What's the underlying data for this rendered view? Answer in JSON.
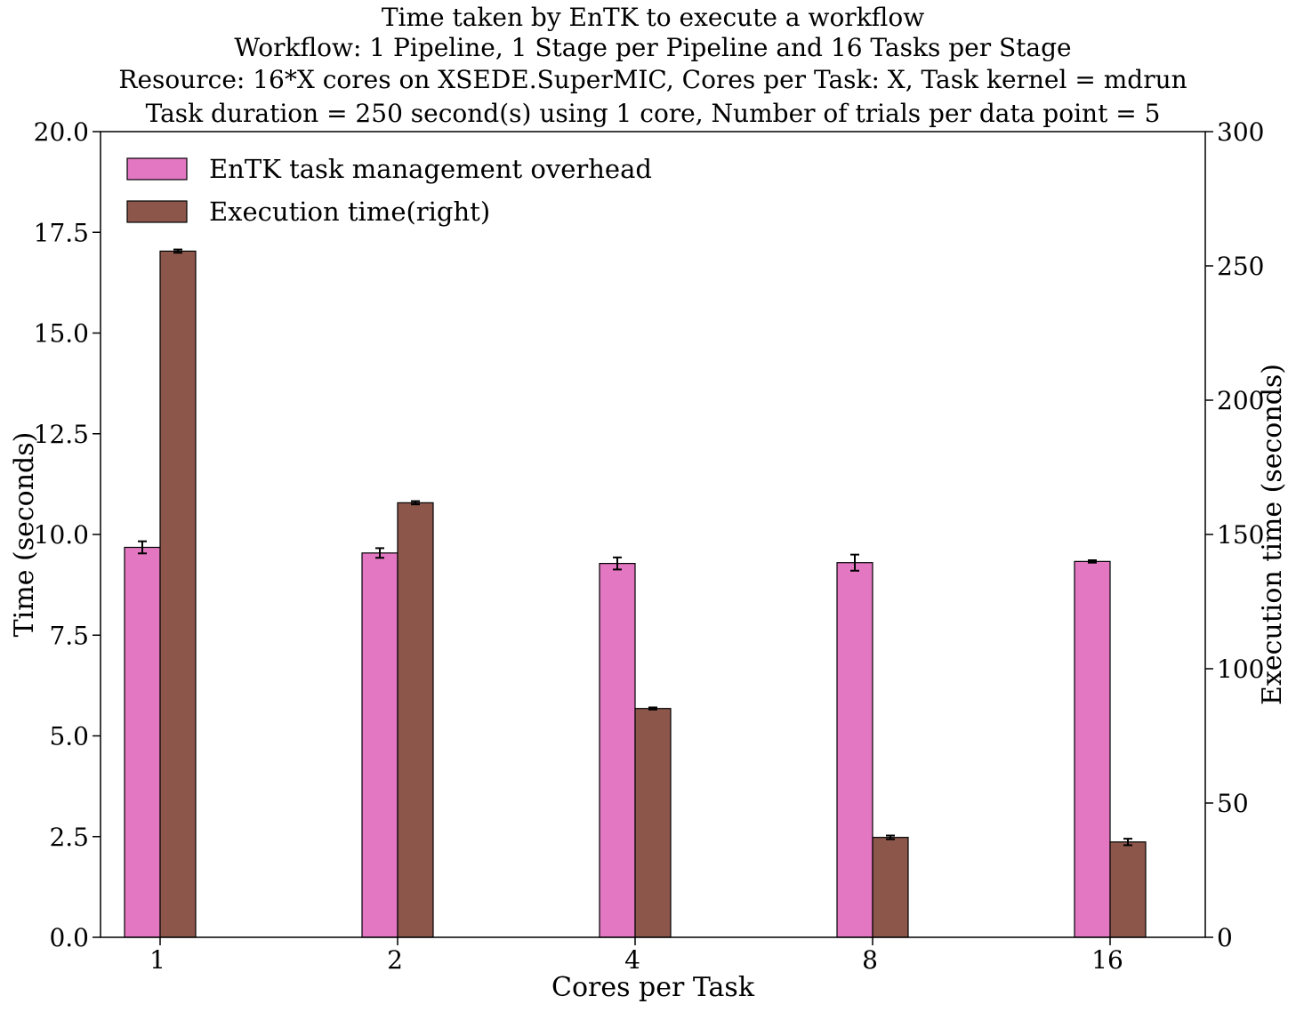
{
  "chart_data": {
    "type": "bar",
    "title_lines": [
      "Time taken by EnTK to execute a workflow",
      "Workflow: 1 Pipeline, 1 Stage per Pipeline and 16 Tasks per Stage",
      "Resource: 16*X cores on XSEDE.SuperMIC, Cores per Task: X, Task kernel = mdrun",
      "Task duration =  250 second(s) using 1 core, Number of trials per data point = 5"
    ],
    "xlabel": "Cores per Task",
    "ylabel": "Time (seconds)",
    "ylabel_right": "Execution time (seconds)",
    "categories": [
      "1",
      "2",
      "4",
      "8",
      "16"
    ],
    "ylim": [
      0,
      20
    ],
    "ylim_right": [
      0,
      300
    ],
    "yticks": [
      "0.0",
      "2.5",
      "5.0",
      "7.5",
      "10.0",
      "12.5",
      "15.0",
      "17.5",
      "20.0"
    ],
    "yticks_right": [
      "0",
      "50",
      "100",
      "150",
      "200",
      "250",
      "300"
    ],
    "legend_position": "top-left",
    "grid": false,
    "series": [
      {
        "name": "EnTK task management overhead",
        "axis": "left",
        "color": "#e377c2",
        "values": [
          9.68,
          9.54,
          9.28,
          9.3,
          9.33
        ],
        "errors": [
          0.15,
          0.12,
          0.15,
          0.2,
          0.03
        ]
      },
      {
        "name": "Execution time(right)",
        "axis": "right",
        "color": "#8c564b",
        "values": [
          255.5,
          161.8,
          85.2,
          37.2,
          35.5
        ],
        "errors": [
          0.6,
          0.6,
          0.4,
          0.7,
          1.2
        ]
      }
    ]
  }
}
